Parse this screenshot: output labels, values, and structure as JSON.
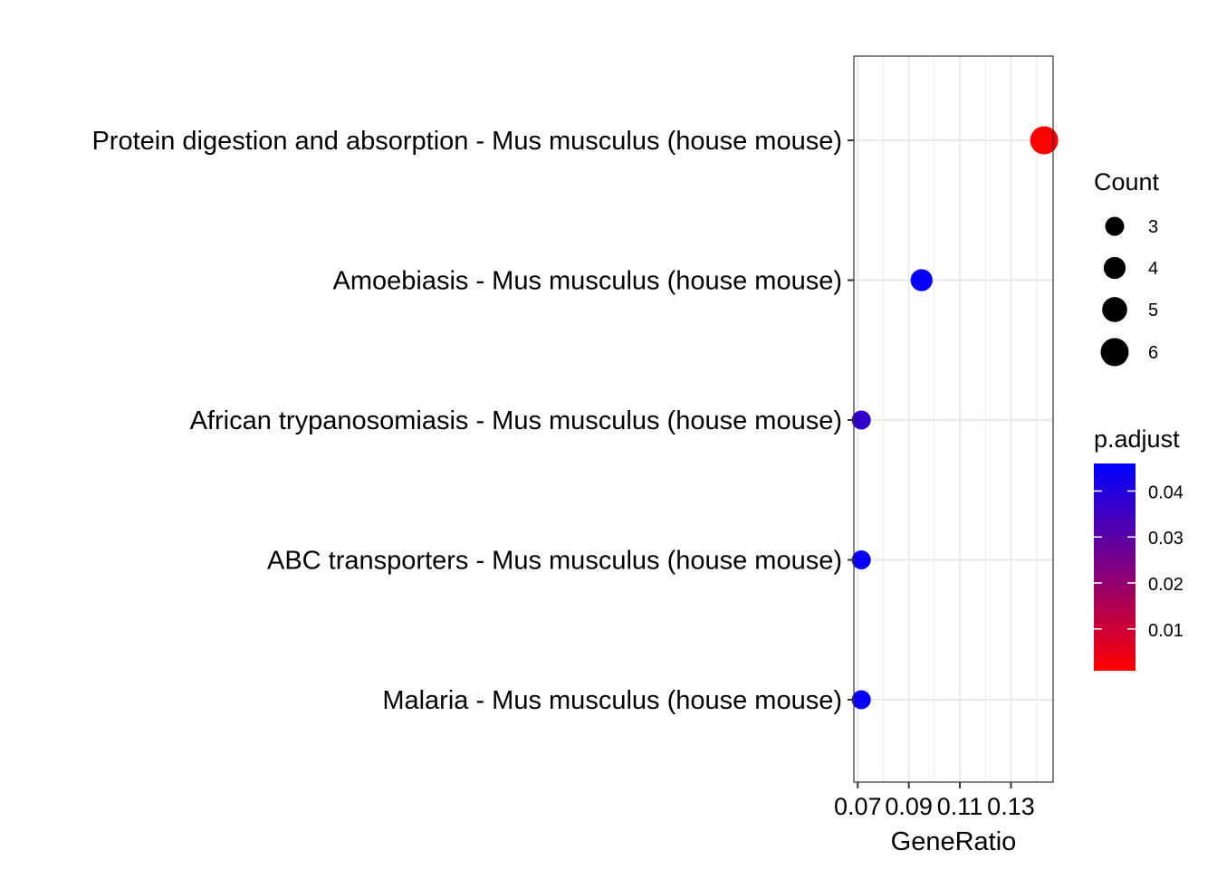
{
  "chart_data": {
    "type": "scatter",
    "xlabel": "GeneRatio",
    "ylabel": "",
    "xlim": [
      0.0685,
      0.1465
    ],
    "x_ticks": [
      0.07,
      0.09,
      0.11,
      0.13
    ],
    "x_tick_labels": [
      "0.07",
      "0.09",
      "0.11",
      "0.13"
    ],
    "categories": [
      "Protein digestion and absorption - Mus musculus (house mouse)",
      "Amoebiasis - Mus musculus (house mouse)",
      "African trypanosomiasis - Mus musculus (house mouse)",
      "ABC transporters - Mus musculus (house mouse)",
      "Malaria - Mus musculus (house mouse)"
    ],
    "points": [
      {
        "category": "Protein digestion and absorption - Mus musculus (house mouse)",
        "x": 0.143,
        "count": 6,
        "p_adjust": 0.0009
      },
      {
        "category": "Amoebiasis - Mus musculus (house mouse)",
        "x": 0.095,
        "count": 4,
        "p_adjust": 0.045
      },
      {
        "category": "African trypanosomiasis - Mus musculus (house mouse)",
        "x": 0.0714,
        "count": 3,
        "p_adjust": 0.037
      },
      {
        "category": "ABC transporters - Mus musculus (house mouse)",
        "x": 0.0714,
        "count": 3,
        "p_adjust": 0.045
      },
      {
        "category": "Malaria - Mus musculus (house mouse)",
        "x": 0.0714,
        "count": 3,
        "p_adjust": 0.045
      }
    ],
    "grid": true,
    "legend_position": "right",
    "size_legend": {
      "title": "Count",
      "values": [
        3,
        4,
        5,
        6
      ],
      "labels": [
        "3",
        "4",
        "5",
        "6"
      ]
    },
    "color_legend": {
      "title": "p.adjust",
      "low_color": "#ff0000",
      "high_color": "#0000ff",
      "range": [
        0.0009,
        0.046
      ],
      "ticks": [
        0.01,
        0.02,
        0.03,
        0.04
      ],
      "tick_labels": [
        "0.01",
        "0.02",
        "0.03",
        "0.04"
      ]
    }
  }
}
